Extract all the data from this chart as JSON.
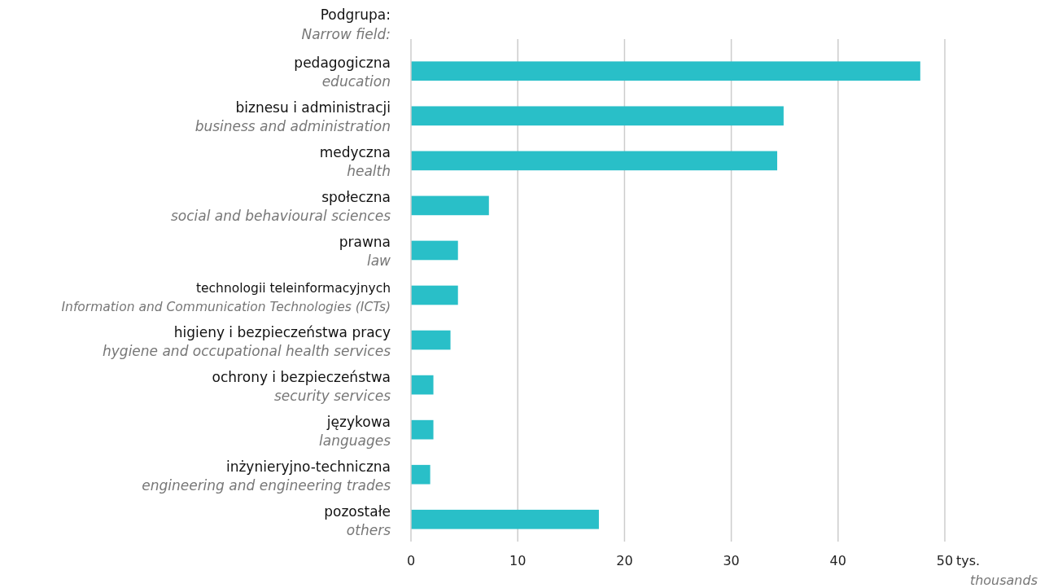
{
  "chart_data": {
    "type": "bar",
    "orientation": "horizontal",
    "ylabel": "Podgrupa:\nNarrow field:",
    "xlabel": "tys.\nthousands",
    "categories": [
      "pedagogiczna\neducation",
      "biznesu i administracji\nbusiness and administration",
      "medyczna\nhealth",
      "społeczna\nsocial and behavioural sciences",
      "prawna\nlaw",
      "technologii teleinformacyjnych\nInformation and Communication Technologies (ICTs)",
      "higieny i bezpieczeństwa pracy\nhygiene and occupational health services",
      "ochrony i bezpieczeństwa\nsecurity services",
      "językowa\nlanguages",
      "inżynieryjno-techniczna\nengineering and engineering trades",
      "pozostałe\nothers"
    ],
    "values": [
      47.7,
      34.9,
      34.3,
      7.3,
      4.4,
      4.4,
      3.7,
      2.1,
      2.1,
      1.8,
      17.6
    ],
    "color": "#29bfc8",
    "xlim": [
      0,
      50
    ],
    "xticks": [
      0,
      10,
      20,
      30,
      40,
      50
    ],
    "grid": "x"
  }
}
